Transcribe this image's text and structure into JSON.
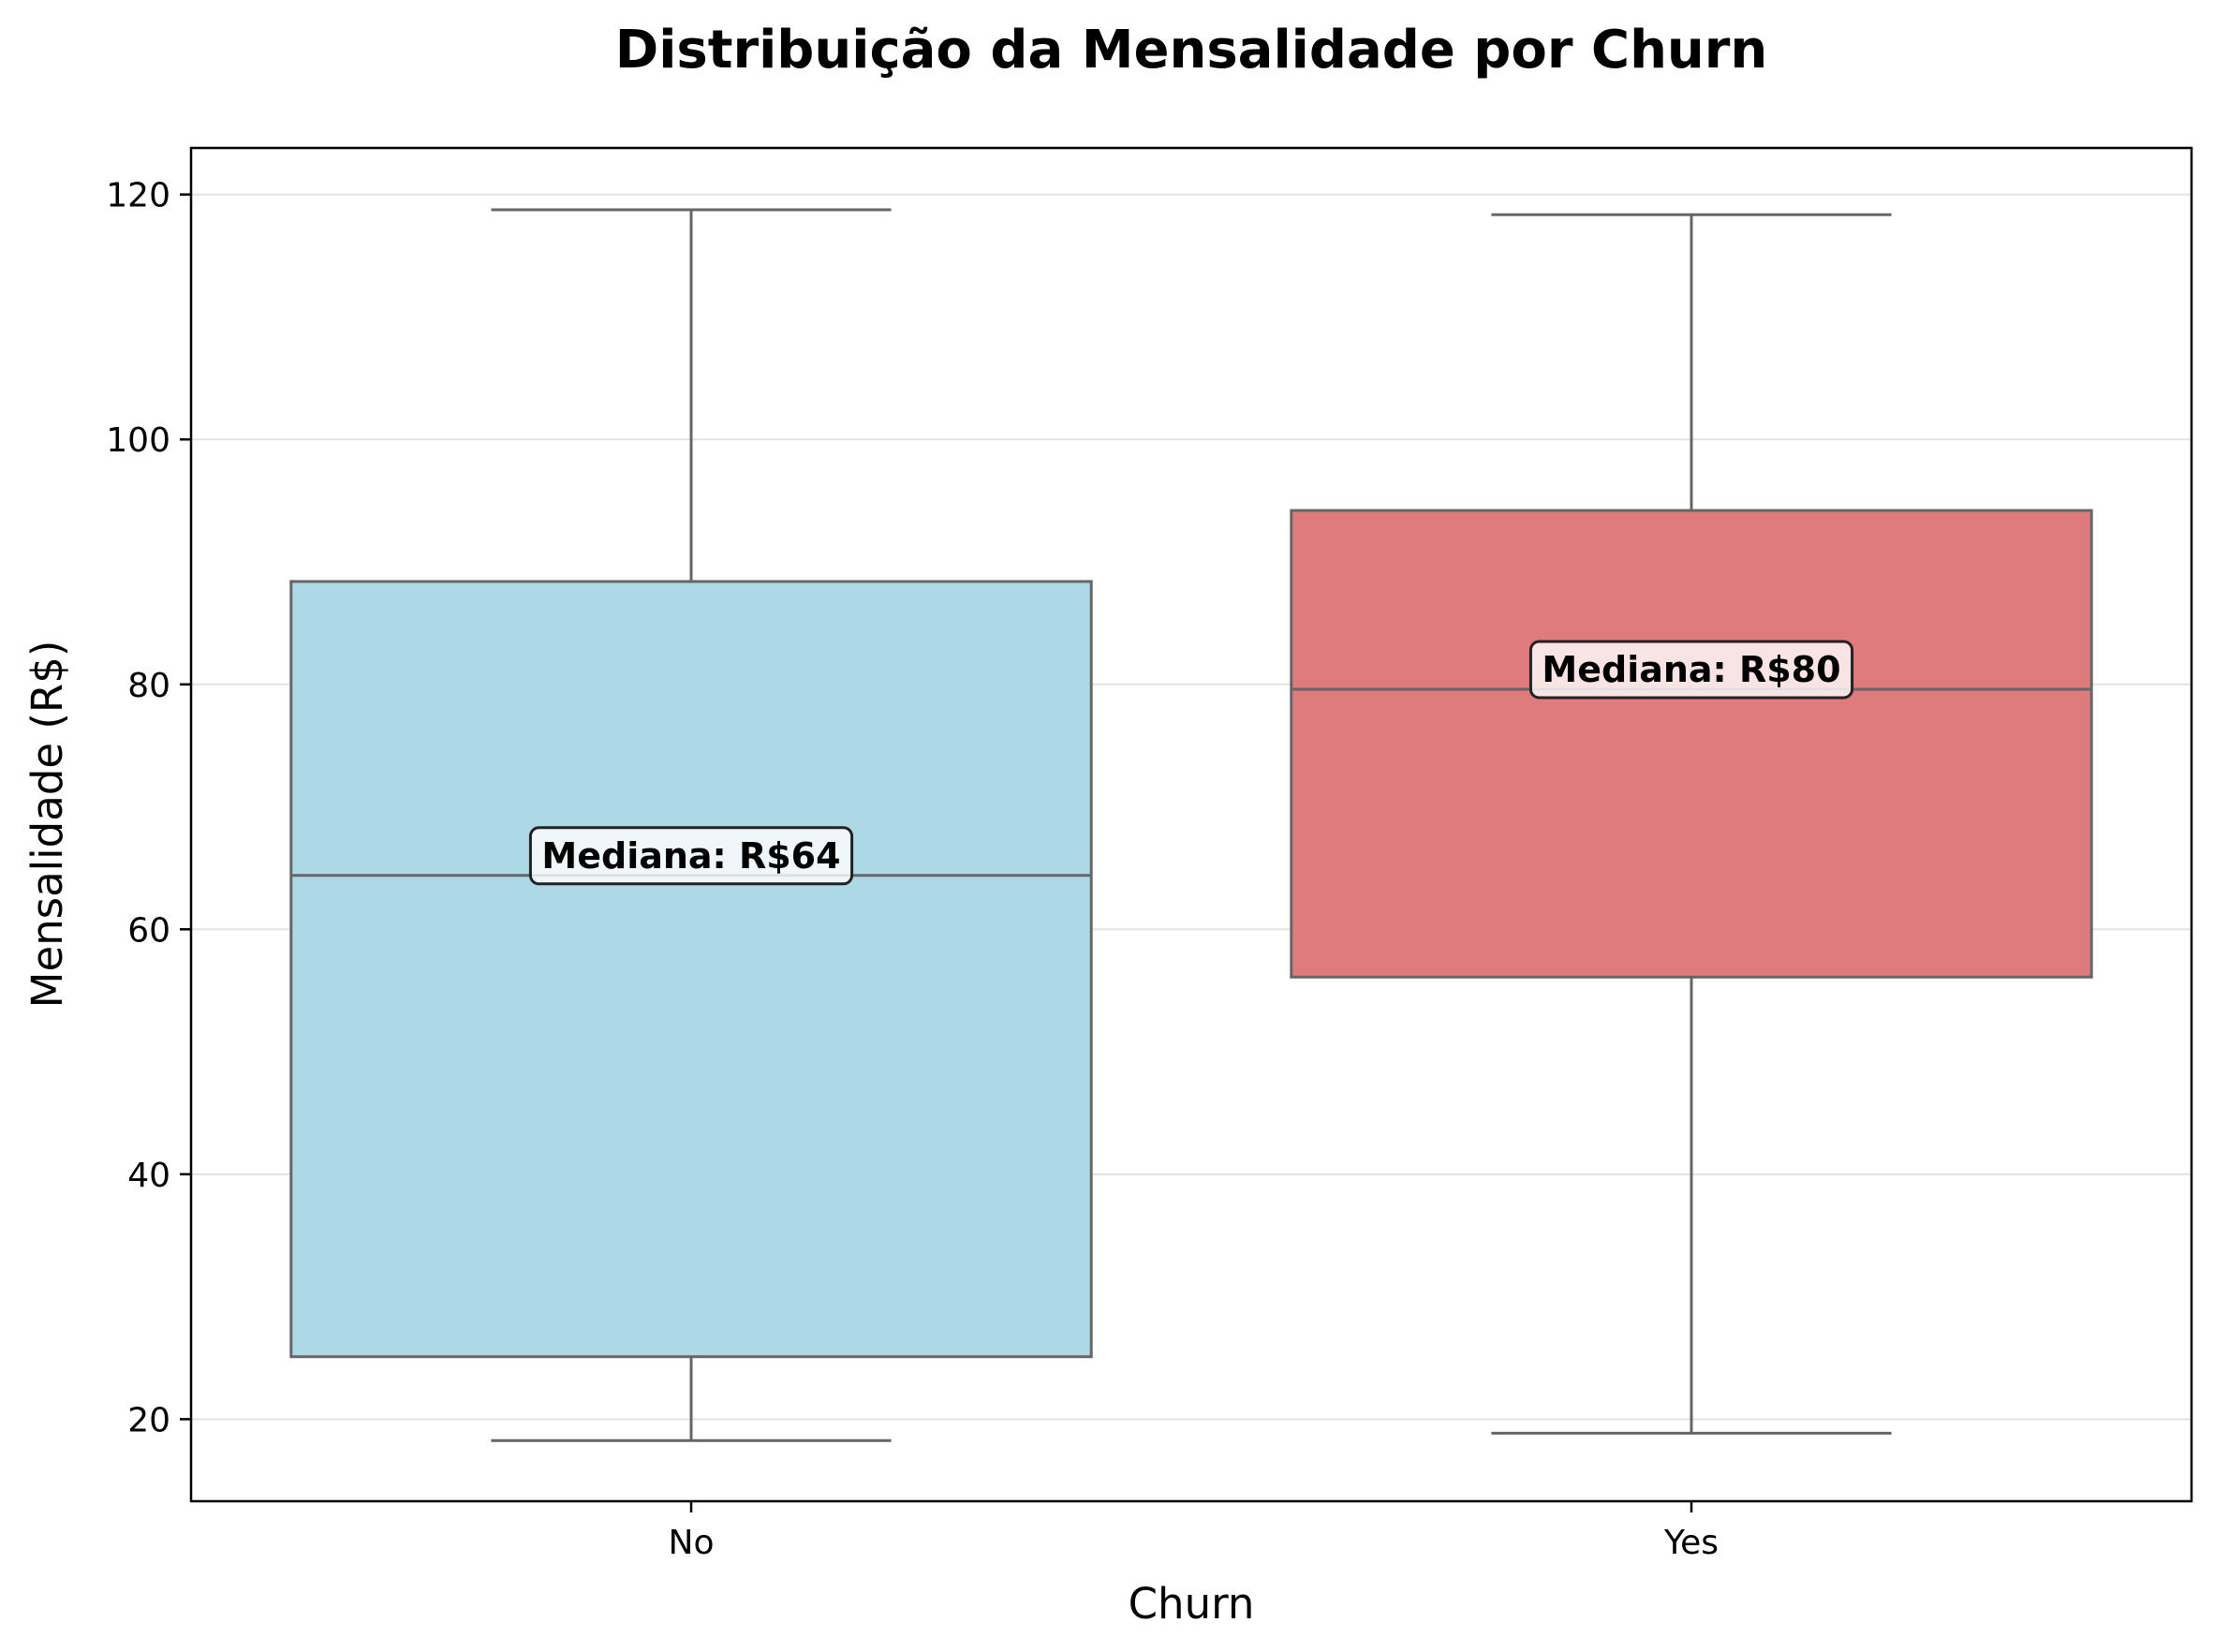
{
  "chart_data": {
    "type": "box",
    "title": "Distribuição da Mensalidade por Churn",
    "xlabel": "Churn",
    "ylabel": "Mensalidade (R$)",
    "ylim": [
      13.3,
      123.8
    ],
    "yticks": [
      20,
      40,
      60,
      80,
      100,
      120
    ],
    "grid": "y",
    "categories": [
      "No",
      "Yes"
    ],
    "series": [
      {
        "category": "No",
        "whisker_low": 18.25,
        "q1": 25.1,
        "median": 64.4,
        "q3": 88.4,
        "whisker_high": 118.75,
        "color": "#add8e6",
        "median_label": "Mediana: R$64"
      },
      {
        "category": "Yes",
        "whisker_low": 18.85,
        "q1": 56.1,
        "median": 79.6,
        "q3": 94.2,
        "whisker_high": 118.35,
        "color": "#e07b7d",
        "median_label": "Mediana: R$80"
      }
    ]
  }
}
